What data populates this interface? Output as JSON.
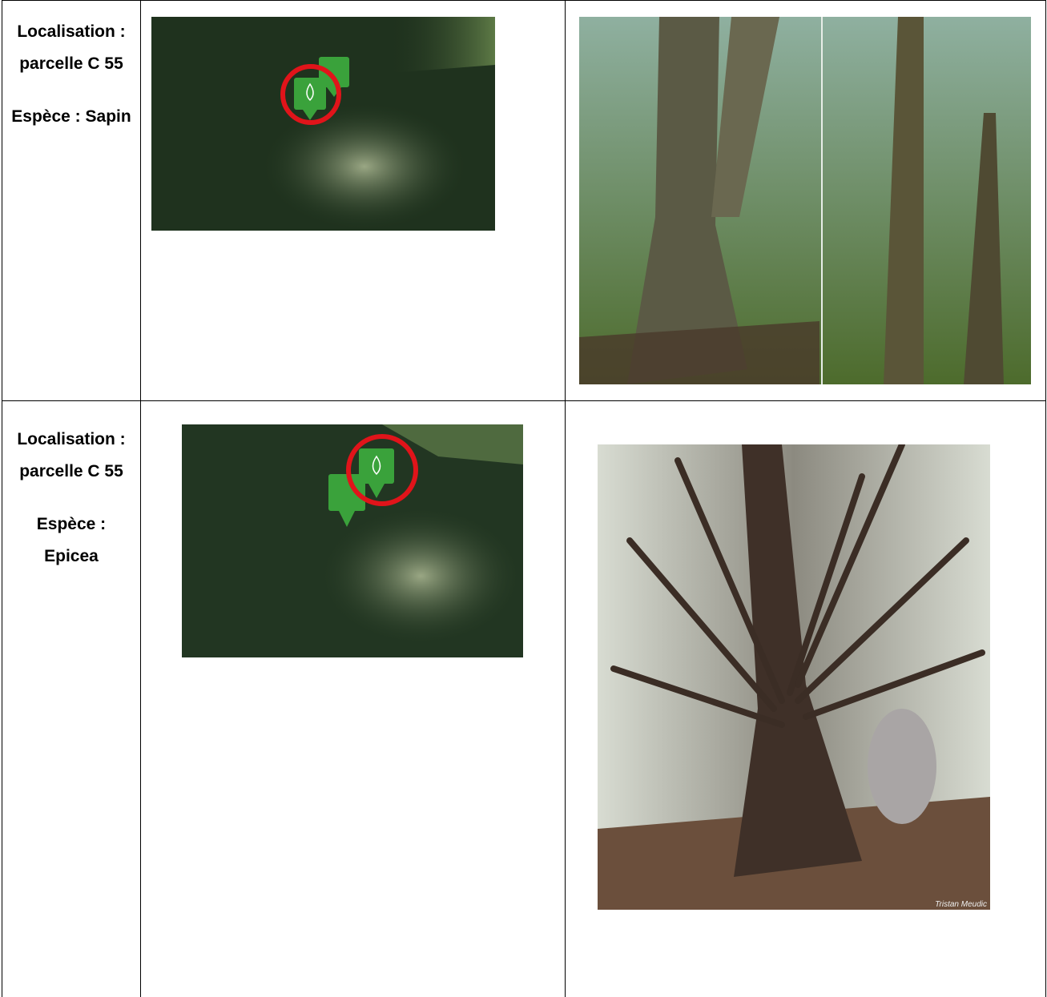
{
  "table": {
    "rows": [
      {
        "location": "Localisation : parcelle C 55",
        "species": "Espèce : Sapin"
      },
      {
        "location": "Localisation : parcelle C 55",
        "species": "Espèce : Epicea",
        "photo_credit": "Tristan Meudic"
      }
    ]
  }
}
